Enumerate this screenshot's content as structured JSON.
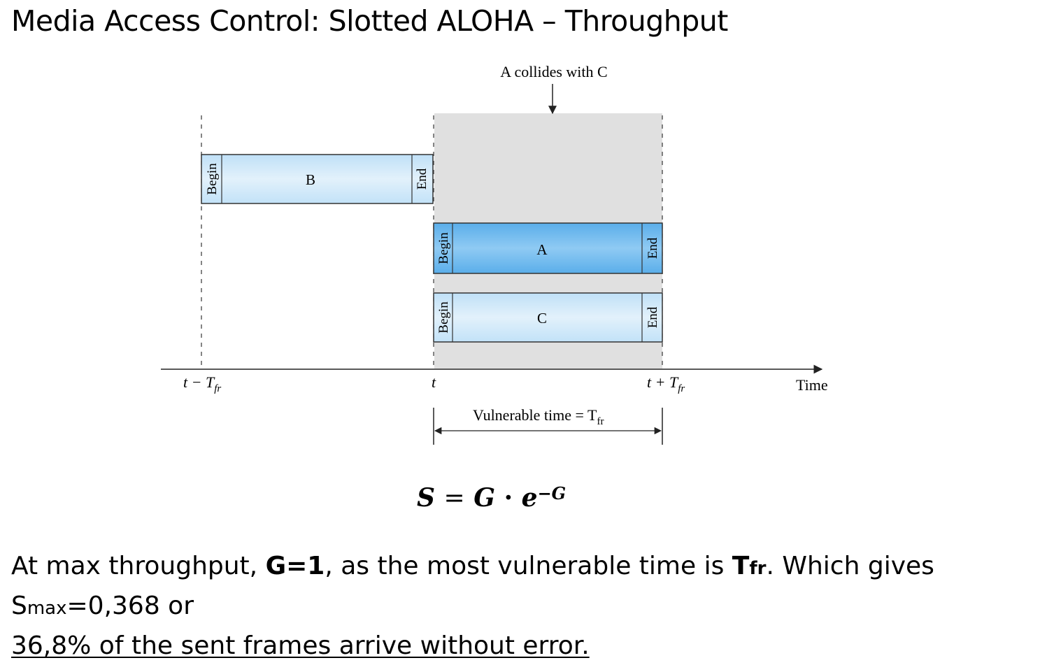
{
  "title": "Media Access Control: Slotted ALOHA – Throughput",
  "diagram": {
    "collision_label": "A collides with C",
    "frames": [
      {
        "name": "B",
        "begin": "Begin",
        "end": "End"
      },
      {
        "name": "A",
        "begin": "Begin",
        "end": "End"
      },
      {
        "name": "C",
        "begin": "Begin",
        "end": "End"
      }
    ],
    "axis": {
      "tick_left": "t − T",
      "tick_left_sub": "fr",
      "tick_mid": "t",
      "tick_right": "t + T",
      "tick_right_sub": "fr",
      "axis_label": "Time"
    },
    "vulnerable_label": "Vulnerable time = T",
    "vulnerable_sub": "fr",
    "colors": {
      "frame_light": "#d4e9f8",
      "frame_dark": "#7bbff0",
      "shade": "#dcdcdc"
    }
  },
  "formula": {
    "lhs": "S",
    "eq": "=",
    "g": "G",
    "dot": "·",
    "e": "e",
    "exp": "−G"
  },
  "text": {
    "p1": "At max throughput, ",
    "g1": "G=1",
    "p2": ", as the most vulnerable time is ",
    "tfr_t": "T",
    "tfr_s": "fr",
    "p3": ".  Which gives S",
    "smax_s": "max",
    "p4": "=0,368 or",
    "p5": "36,8% of the sent frames arrive without error."
  }
}
